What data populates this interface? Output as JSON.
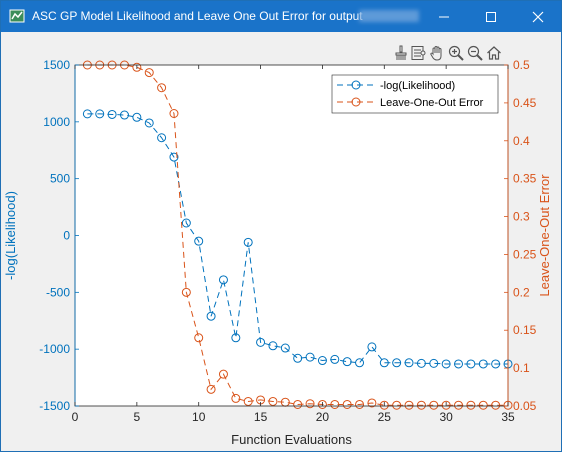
{
  "window": {
    "title": "ASC GP Model Likelihood and Leave One Out Error for output",
    "icon": "matlab-figure-icon",
    "controls": [
      "minimize-icon",
      "maximize-icon",
      "close-icon"
    ]
  },
  "toolbar": {
    "icons": [
      "brush-icon",
      "data-cursor-icon",
      "pan-hand-icon",
      "zoom-in-icon",
      "zoom-out-icon",
      "home-icon"
    ]
  },
  "colors": {
    "left_series": "#0072bd",
    "right_series": "#d95319",
    "titlebar": "#1a73c9"
  },
  "chart_data": {
    "type": "line",
    "title": "",
    "xlabel": "Function Evaluations",
    "ylabel_left": "-log(Likelihood)",
    "ylabel_right": "Leave-One-Out Error",
    "xlim": [
      0,
      35
    ],
    "ylim_left": [
      -1500,
      1500
    ],
    "ylim_right": [
      0.05,
      0.5
    ],
    "x_ticks": [
      "0",
      "5",
      "10",
      "15",
      "20",
      "25",
      "30",
      "35"
    ],
    "y_ticks_left": [
      "1500",
      "1000",
      "500",
      "0",
      "-500",
      "-1000",
      "-1500"
    ],
    "y_ticks_right": [
      "0.5",
      "0.45",
      "0.4",
      "0.35",
      "0.3",
      "0.25",
      "0.2",
      "0.15",
      "0.1",
      "0.05"
    ],
    "grid": false,
    "legend_position": "top-right",
    "series": [
      {
        "name": "-log(Likelihood)",
        "axis": "left",
        "color": "#0072bd",
        "marker": "circle",
        "line": "dashed",
        "x": [
          1,
          2,
          3,
          4,
          5,
          6,
          7,
          8,
          9,
          10,
          11,
          12,
          13,
          14,
          15,
          16,
          17,
          18,
          19,
          20,
          21,
          22,
          23,
          24,
          25,
          26,
          27,
          28,
          29,
          30,
          31,
          32,
          33,
          34,
          35
        ],
        "y": [
          1070,
          1070,
          1065,
          1060,
          1040,
          990,
          860,
          690,
          110,
          -50,
          -710,
          -390,
          -900,
          -60,
          -940,
          -970,
          -990,
          -1080,
          -1070,
          -1100,
          -1090,
          -1110,
          -1120,
          -980,
          -1120,
          -1120,
          -1120,
          -1125,
          -1125,
          -1130,
          -1130,
          -1130,
          -1130,
          -1130,
          -1130
        ]
      },
      {
        "name": "Leave-One-Out Error",
        "axis": "right",
        "color": "#d95319",
        "marker": "circle",
        "line": "dashed",
        "x": [
          1,
          2,
          3,
          4,
          5,
          6,
          7,
          8,
          9,
          10,
          11,
          12,
          13,
          14,
          15,
          16,
          17,
          18,
          19,
          20,
          21,
          22,
          23,
          24,
          25,
          26,
          27,
          28,
          29,
          30,
          31,
          32,
          33,
          34,
          35
        ],
        "y": [
          0.5,
          0.5,
          0.5,
          0.5,
          0.497,
          0.49,
          0.47,
          0.436,
          0.2,
          0.14,
          0.072,
          0.092,
          0.06,
          0.056,
          0.058,
          0.056,
          0.055,
          0.052,
          0.053,
          0.052,
          0.052,
          0.052,
          0.052,
          0.054,
          0.051,
          0.051,
          0.051,
          0.051,
          0.051,
          0.051,
          0.051,
          0.051,
          0.051,
          0.051,
          0.051
        ]
      }
    ]
  }
}
